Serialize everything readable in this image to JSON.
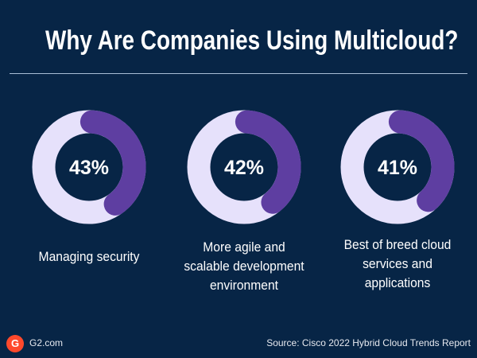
{
  "title": "Why Are Companies Using Multicloud?",
  "colors": {
    "background": "#072546",
    "track": "#e6e1fb",
    "fill": "#5e3ea1",
    "logo": "#ff492c"
  },
  "chart_data": {
    "type": "pie",
    "subtype": "donut",
    "items": [
      {
        "value": 43,
        "value_label": "43%",
        "label": "Managing security",
        "label_lines": [
          "Managing security"
        ]
      },
      {
        "value": 42,
        "value_label": "42%",
        "label": "More agile and scalable development environment",
        "label_lines": [
          "More agile and",
          "scalable development",
          "environment"
        ]
      },
      {
        "value": 41,
        "value_label": "41%",
        "label": "Best of breed cloud services and applications",
        "label_lines": [
          "Best of breed cloud",
          "services and",
          "applications"
        ]
      }
    ]
  },
  "footer": {
    "logo_text": "G",
    "site": "G2.com",
    "source": "Source: Cisco 2022 Hybrid Cloud Trends Report"
  }
}
